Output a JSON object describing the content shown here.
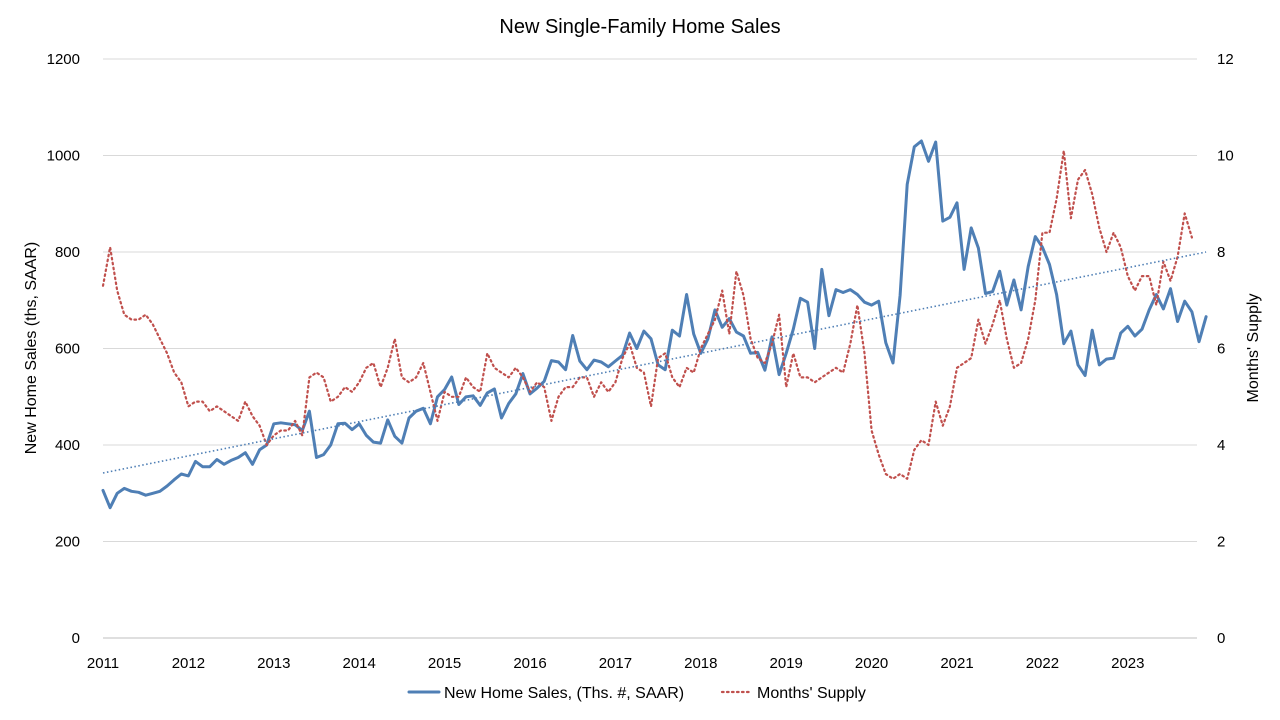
{
  "chart_data": {
    "type": "line",
    "title": "New Single-Family Home Sales",
    "ylabel": "New Home Sales (ths, SAAR)",
    "y2label": "Months' Supply",
    "ylim": [
      0,
      1200
    ],
    "y2lim": [
      0,
      12
    ],
    "yticks": [
      "0",
      "200",
      "400",
      "600",
      "800",
      "1000",
      "1200"
    ],
    "y2ticks": [
      "0",
      "2",
      "4",
      "6",
      "8",
      "10",
      "12"
    ],
    "xticks": [
      "2011",
      "2012",
      "2013",
      "2014",
      "2015",
      "2016",
      "2017",
      "2018",
      "2019",
      "2020",
      "2021",
      "2022",
      "2023"
    ],
    "grid": "horizontal",
    "legend_position": "bottom",
    "start": "2011-01",
    "frequency": "monthly",
    "series": [
      {
        "name": "New Home Sales, (Ths. #, SAAR)",
        "axis": "left",
        "color": "#4f7fb5",
        "style": "solid",
        "values": [
          306,
          270,
          300,
          310,
          304,
          302,
          296,
          300,
          304,
          315,
          328,
          340,
          336,
          366,
          355,
          355,
          370,
          360,
          368,
          374,
          384,
          360,
          390,
          400,
          444,
          446,
          444,
          442,
          430,
          470,
          374,
          380,
          400,
          444,
          445,
          432,
          444,
          420,
          406,
          404,
          452,
          418,
          404,
          456,
          470,
          476,
          444,
          500,
          515,
          541,
          484,
          500,
          502,
          482,
          508,
          516,
          456,
          486,
          506,
          548,
          506,
          518,
          532,
          575,
          572,
          556,
          627,
          574,
          556,
          576,
          572,
          562,
          574,
          586,
          632,
          600,
          636,
          620,
          566,
          556,
          638,
          626,
          712,
          630,
          590,
          620,
          680,
          644,
          662,
          634,
          626,
          590,
          592,
          555,
          624,
          546,
          590,
          640,
          704,
          696,
          600,
          764,
          668,
          722,
          716,
          722,
          712,
          696,
          690,
          698,
          612,
          570,
          710,
          940,
          1018,
          1030,
          988,
          1028,
          864,
          872,
          902,
          764,
          850,
          808,
          714,
          718,
          760,
          690,
          742,
          680,
          770,
          832,
          810,
          774,
          712,
          610,
          636,
          566,
          544,
          638,
          566,
          578,
          580,
          632,
          646,
          626,
          640,
          680,
          712,
          682,
          724,
          656,
          698,
          676,
          614,
          666
        ]
      },
      {
        "name": "Months' Supply",
        "axis": "right",
        "color": "#c0504d",
        "style": "dotted",
        "values": [
          7.3,
          8.1,
          7.2,
          6.7,
          6.6,
          6.6,
          6.7,
          6.5,
          6.2,
          5.9,
          5.5,
          5.3,
          4.8,
          4.9,
          4.9,
          4.7,
          4.8,
          4.7,
          4.6,
          4.5,
          4.9,
          4.6,
          4.4,
          4.0,
          4.2,
          4.3,
          4.3,
          4.5,
          4.2,
          5.4,
          5.5,
          5.4,
          4.9,
          5.0,
          5.2,
          5.1,
          5.3,
          5.6,
          5.7,
          5.2,
          5.6,
          6.2,
          5.4,
          5.3,
          5.4,
          5.7,
          5.1,
          4.5,
          5.1,
          5.0,
          5.0,
          5.4,
          5.2,
          5.1,
          5.9,
          5.6,
          5.5,
          5.4,
          5.6,
          5.4,
          5.1,
          5.3,
          5.2,
          4.5,
          5.0,
          5.2,
          5.2,
          5.4,
          5.4,
          5.0,
          5.3,
          5.1,
          5.3,
          5.8,
          6.1,
          5.6,
          5.5,
          4.8,
          5.8,
          5.9,
          5.4,
          5.2,
          5.6,
          5.5,
          6.0,
          6.3,
          6.6,
          7.2,
          6.3,
          7.6,
          7.1,
          6.2,
          5.8,
          5.7,
          6.1,
          6.7,
          5.2,
          5.9,
          5.4,
          5.4,
          5.3,
          5.4,
          5.5,
          5.6,
          5.5,
          6.1,
          6.9,
          5.9,
          4.3,
          3.8,
          3.4,
          3.3,
          3.4,
          3.3,
          3.9,
          4.1,
          4.0,
          4.9,
          4.4,
          4.8,
          5.6,
          5.7,
          5.8,
          6.6,
          6.1,
          6.5,
          7.0,
          6.2,
          5.6,
          5.7,
          6.2,
          7.0,
          8.4,
          8.4,
          9.1,
          10.1,
          8.7,
          9.5,
          9.7,
          9.2,
          8.5,
          8.0,
          8.4,
          8.1,
          7.5,
          7.2,
          7.5,
          7.5,
          6.9,
          7.8,
          7.4,
          7.9,
          8.8,
          8.3
        ]
      }
    ],
    "trendline": {
      "of_series": "New Home Sales, (Ths. #, SAAR)",
      "color": "#4f7fb5",
      "style": "dotted",
      "y_start": 342,
      "y_end": 800
    }
  }
}
